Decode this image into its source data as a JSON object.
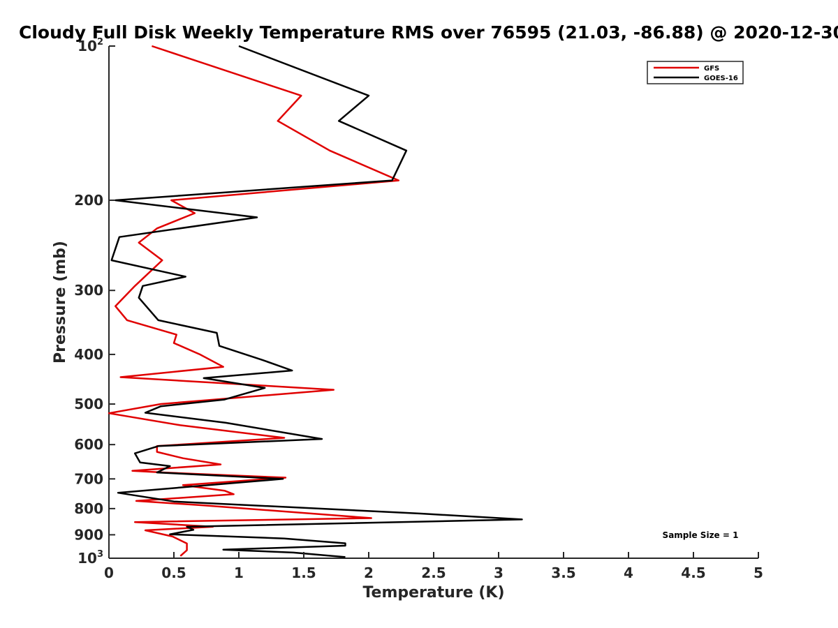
{
  "chart_data": {
    "type": "line",
    "title": "Cloudy Full Disk Weekly Temperature RMS over 76595 (21.03, -86.88) @ 2020-12-30",
    "xlabel": "Temperature (K)",
    "ylabel": "Pressure (mb)",
    "xlim": [
      0,
      5
    ],
    "ylim": [
      100,
      1000
    ],
    "yscale": "log",
    "y_reversed": true,
    "x_ticks": [
      "0",
      "0.5",
      "1",
      "1.5",
      "2",
      "2.5",
      "3",
      "3.5",
      "4",
      "4.5",
      "5"
    ],
    "y_ticks": [
      {
        "value": 100,
        "base": "10",
        "exp": "2"
      },
      {
        "value": 200,
        "label": "200"
      },
      {
        "value": 300,
        "label": "300"
      },
      {
        "value": 400,
        "label": "400"
      },
      {
        "value": 500,
        "label": "500"
      },
      {
        "value": 600,
        "label": "600"
      },
      {
        "value": 700,
        "label": "700"
      },
      {
        "value": 800,
        "label": "800"
      },
      {
        "value": 900,
        "label": "900"
      },
      {
        "value": 1000,
        "base": "10",
        "exp": "3"
      }
    ],
    "grid": false,
    "legend_position": "top-right",
    "annotation": "Sample Size = 1",
    "series": [
      {
        "name": "GFS",
        "color": "#e00000",
        "points": [
          [
            0.33,
            100
          ],
          [
            1.48,
            125
          ],
          [
            1.3,
            140
          ],
          [
            1.7,
            160
          ],
          [
            2.23,
            183
          ],
          [
            0.48,
            200
          ],
          [
            0.66,
            212
          ],
          [
            0.37,
            227
          ],
          [
            0.23,
            242
          ],
          [
            0.41,
            262
          ],
          [
            0.2,
            294
          ],
          [
            0.05,
            322
          ],
          [
            0.14,
            343
          ],
          [
            0.52,
            366
          ],
          [
            0.5,
            380
          ],
          [
            0.7,
            400
          ],
          [
            0.88,
            423
          ],
          [
            0.09,
            443
          ],
          [
            1.73,
            469
          ],
          [
            0.4,
            500
          ],
          [
            0.0,
            521
          ],
          [
            0.55,
            550
          ],
          [
            1.35,
            582
          ],
          [
            0.37,
            604
          ],
          [
            0.37,
            620
          ],
          [
            0.57,
            638
          ],
          [
            0.86,
            656
          ],
          [
            0.18,
            675
          ],
          [
            0.42,
            680
          ],
          [
            1.36,
            696
          ],
          [
            0.57,
            720
          ],
          [
            0.89,
            738
          ],
          [
            0.96,
            750
          ],
          [
            0.21,
            773
          ],
          [
            0.72,
            788
          ],
          [
            2.02,
            835
          ],
          [
            0.2,
            850
          ],
          [
            0.8,
            868
          ],
          [
            0.28,
            882
          ],
          [
            0.49,
            907
          ],
          [
            0.6,
            936
          ],
          [
            0.6,
            965
          ],
          [
            0.55,
            990
          ]
        ]
      },
      {
        "name": "GOES-16",
        "color": "#000000",
        "points": [
          [
            1.0,
            100
          ],
          [
            2.0,
            125
          ],
          [
            1.77,
            140
          ],
          [
            2.29,
            160
          ],
          [
            2.18,
            183
          ],
          [
            0.05,
            200
          ],
          [
            1.14,
            216
          ],
          [
            0.08,
            236
          ],
          [
            0.02,
            262
          ],
          [
            0.59,
            282
          ],
          [
            0.26,
            294
          ],
          [
            0.23,
            310
          ],
          [
            0.38,
            343
          ],
          [
            0.83,
            363
          ],
          [
            0.85,
            385
          ],
          [
            1.18,
            410
          ],
          [
            1.41,
            430
          ],
          [
            0.73,
            445
          ],
          [
            1.2,
            465
          ],
          [
            0.89,
            490
          ],
          [
            0.4,
            505
          ],
          [
            0.28,
            520
          ],
          [
            0.9,
            544
          ],
          [
            1.64,
            585
          ],
          [
            0.38,
            604
          ],
          [
            0.2,
            624
          ],
          [
            0.24,
            650
          ],
          [
            0.47,
            661
          ],
          [
            0.37,
            680
          ],
          [
            1.34,
            700
          ],
          [
            0.07,
            745
          ],
          [
            0.5,
            775
          ],
          [
            2.4,
            818
          ],
          [
            3.18,
            840
          ],
          [
            0.6,
            868
          ],
          [
            0.65,
            880
          ],
          [
            0.47,
            898
          ],
          [
            1.35,
            915
          ],
          [
            1.82,
            935
          ],
          [
            1.82,
            945
          ],
          [
            0.88,
            962
          ],
          [
            1.42,
            975
          ],
          [
            1.82,
            995
          ]
        ]
      }
    ]
  }
}
